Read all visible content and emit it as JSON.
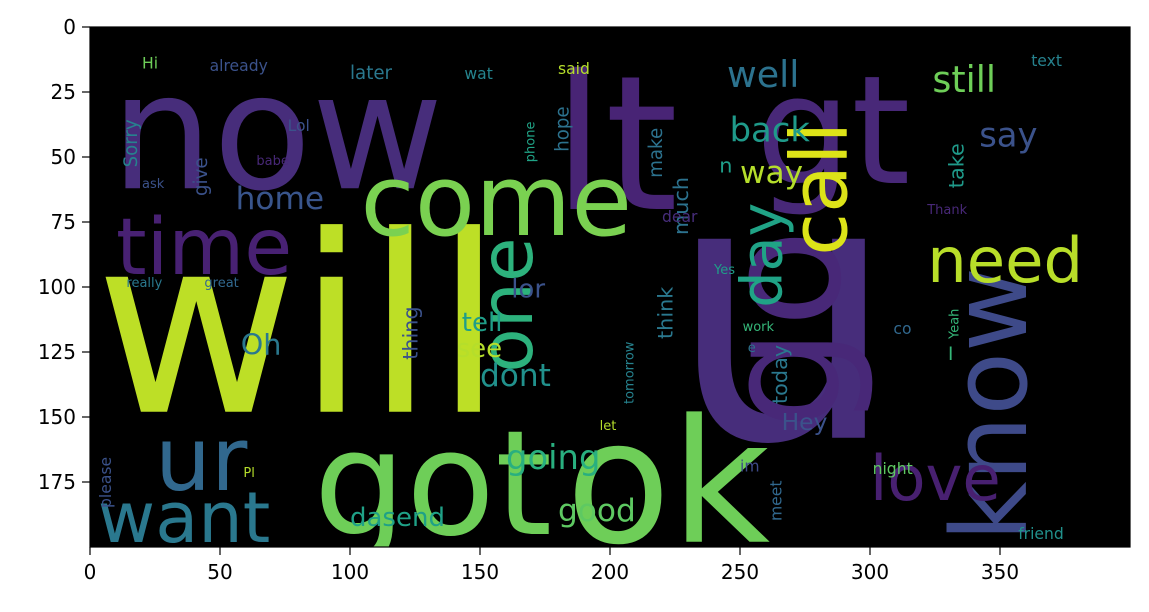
{
  "chart_data": {
    "type": "image",
    "xlim": [
      0,
      400
    ],
    "ylim": [
      200,
      0
    ],
    "x_ticks": [
      0,
      50,
      100,
      150,
      200,
      250,
      300,
      350
    ],
    "y_ticks": [
      0,
      25,
      50,
      75,
      100,
      125,
      150,
      175
    ],
    "background": "#000000",
    "palette": [
      "#440154",
      "#482878",
      "#3e4989",
      "#31688e",
      "#26828e",
      "#1f9e89",
      "#35b779",
      "#6ece58",
      "#b5de2b",
      "#fde725"
    ],
    "words": [
      {
        "text": "will",
        "x": 2,
        "y": 148,
        "size": 95,
        "color": "#bddf26"
      },
      {
        "text": "u",
        "x": 222,
        "y": 158,
        "size": 140,
        "color": "#472d7b"
      },
      {
        "text": "now",
        "x": 8,
        "y": 62,
        "size": 62,
        "color": "#472d7b"
      },
      {
        "text": "lt",
        "x": 178,
        "y": 70,
        "size": 72,
        "color": "#482475"
      },
      {
        "text": "gt",
        "x": 256,
        "y": 60,
        "size": 58,
        "color": "#482878"
      },
      {
        "text": "got",
        "x": 86,
        "y": 195,
        "size": 56,
        "color": "#6ece58"
      },
      {
        "text": "ok",
        "x": 183,
        "y": 198,
        "size": 66,
        "color": "#6ece58"
      },
      {
        "text": "come",
        "x": 104,
        "y": 80,
        "size": 38,
        "color": "#7ad151"
      },
      {
        "text": "go",
        "x": 288,
        "y": 155,
        "size": 62,
        "color": "#482878",
        "rotate": true
      },
      {
        "text": "know",
        "x": 360,
        "y": 198,
        "size": 40,
        "color": "#3e4a89",
        "rotate": true
      },
      {
        "text": "call",
        "x": 291,
        "y": 88,
        "size": 30,
        "color": "#dde318",
        "rotate": true
      },
      {
        "text": "time",
        "x": 10,
        "y": 95,
        "size": 30,
        "color": "#482173"
      },
      {
        "text": "ur",
        "x": 25,
        "y": 178,
        "size": 34,
        "color": "#31688e"
      },
      {
        "text": "want",
        "x": 3,
        "y": 198,
        "size": 27,
        "color": "#2a788e"
      },
      {
        "text": "one",
        "x": 170,
        "y": 133,
        "size": 28,
        "color": "#2db27d",
        "rotate": true
      },
      {
        "text": "need",
        "x": 322,
        "y": 98,
        "size": 24,
        "color": "#b8de29"
      },
      {
        "text": "love",
        "x": 300,
        "y": 182,
        "size": 24,
        "color": "#482071"
      },
      {
        "text": "day",
        "x": 266,
        "y": 108,
        "size": 22,
        "color": "#20a386",
        "rotate": true
      },
      {
        "text": "well",
        "x": 245,
        "y": 23,
        "size": 14,
        "color": "#2c728e"
      },
      {
        "text": "still",
        "x": 324,
        "y": 25,
        "size": 14,
        "color": "#6ece58"
      },
      {
        "text": "say",
        "x": 342,
        "y": 46,
        "size": 13,
        "color": "#3b528b"
      },
      {
        "text": "back",
        "x": 246,
        "y": 44,
        "size": 13,
        "color": "#1f9a8a"
      },
      {
        "text": "way",
        "x": 250,
        "y": 60,
        "size": 12,
        "color": "#b5de2b"
      },
      {
        "text": "home",
        "x": 56,
        "y": 70,
        "size": 12,
        "color": "#39558c"
      },
      {
        "text": "dont",
        "x": 150,
        "y": 138,
        "size": 12,
        "color": "#21918c"
      },
      {
        "text": "see",
        "x": 141,
        "y": 127,
        "size": 10,
        "color": "#b5de2b"
      },
      {
        "text": "lor",
        "x": 162,
        "y": 104,
        "size": 10,
        "color": "#3b528b"
      },
      {
        "text": "tell",
        "x": 143,
        "y": 117,
        "size": 10,
        "color": "#1f9e89"
      },
      {
        "text": "going",
        "x": 160,
        "y": 170,
        "size": 13,
        "color": "#29af7f"
      },
      {
        "text": "good",
        "x": 180,
        "y": 190,
        "size": 12,
        "color": "#5ec962"
      },
      {
        "text": "dasend",
        "x": 100,
        "y": 192,
        "size": 10,
        "color": "#1fa187"
      },
      {
        "text": "Oh",
        "x": 58,
        "y": 126,
        "size": 11,
        "color": "#2a788e"
      },
      {
        "text": "Hey",
        "x": 266,
        "y": 155,
        "size": 9,
        "color": "#3b528b"
      },
      {
        "text": "Sorry",
        "x": 18,
        "y": 54,
        "size": 7,
        "color": "#26828e",
        "rotate": true
      },
      {
        "text": "later",
        "x": 100,
        "y": 20,
        "size": 7,
        "color": "#2a788e"
      },
      {
        "text": "already",
        "x": 46,
        "y": 17,
        "size": 6,
        "color": "#3b528b"
      },
      {
        "text": "wat",
        "x": 144,
        "y": 20,
        "size": 6,
        "color": "#25848e"
      },
      {
        "text": "said",
        "x": 180,
        "y": 18,
        "size": 6,
        "color": "#b5de2b"
      },
      {
        "text": "Hi",
        "x": 20,
        "y": 16,
        "size": 6,
        "color": "#6ece58"
      },
      {
        "text": "text",
        "x": 362,
        "y": 15,
        "size": 6,
        "color": "#26828e"
      },
      {
        "text": "Lol",
        "x": 76,
        "y": 40,
        "size": 6,
        "color": "#3b528b"
      },
      {
        "text": "babe",
        "x": 64,
        "y": 53,
        "size": 5,
        "color": "#482878"
      },
      {
        "text": "give",
        "x": 45,
        "y": 65,
        "size": 7,
        "color": "#3b528b",
        "rotate": true
      },
      {
        "text": "hope",
        "x": 184,
        "y": 48,
        "size": 7,
        "color": "#2c728e",
        "rotate": true
      },
      {
        "text": "make",
        "x": 220,
        "y": 58,
        "size": 7,
        "color": "#2c728e",
        "rotate": true
      },
      {
        "text": "much",
        "x": 230,
        "y": 80,
        "size": 8,
        "color": "#2c728e",
        "rotate": true
      },
      {
        "text": "take",
        "x": 336,
        "y": 62,
        "size": 8,
        "color": "#1f9a8a",
        "rotate": true
      },
      {
        "text": "phone",
        "x": 171,
        "y": 52,
        "size": 5,
        "color": "#20a386",
        "rotate": true
      },
      {
        "text": "n",
        "x": 242,
        "y": 56,
        "size": 8,
        "color": "#1f9e89"
      },
      {
        "text": "ask",
        "x": 20,
        "y": 62,
        "size": 5,
        "color": "#3b528b"
      },
      {
        "text": "dear",
        "x": 220,
        "y": 75,
        "size": 6,
        "color": "#472d7b"
      },
      {
        "text": "Thank",
        "x": 322,
        "y": 72,
        "size": 5,
        "color": "#482878"
      },
      {
        "text": "thing",
        "x": 126,
        "y": 128,
        "size": 8,
        "color": "#3b528b",
        "rotate": true
      },
      {
        "text": "think",
        "x": 224,
        "y": 120,
        "size": 8,
        "color": "#2a788e",
        "rotate": true
      },
      {
        "text": "today",
        "x": 268,
        "y": 145,
        "size": 8,
        "color": "#2a788e",
        "rotate": true
      },
      {
        "text": "really",
        "x": 14,
        "y": 100,
        "size": 5,
        "color": "#2a788e"
      },
      {
        "text": "great",
        "x": 44,
        "y": 100,
        "size": 5,
        "color": "#31688e"
      },
      {
        "text": "Yes",
        "x": 240,
        "y": 95,
        "size": 5,
        "color": "#1f9e89"
      },
      {
        "text": "I",
        "x": 330,
        "y": 128,
        "size": 7,
        "color": "#35b779"
      },
      {
        "text": "Yeah",
        "x": 334,
        "y": 120,
        "size": 5,
        "color": "#35b779",
        "rotate": true
      },
      {
        "text": "work",
        "x": 251,
        "y": 117,
        "size": 5,
        "color": "#35b779"
      },
      {
        "text": "co",
        "x": 309,
        "y": 118,
        "size": 6,
        "color": "#31688e"
      },
      {
        "text": "e",
        "x": 253,
        "y": 125,
        "size": 5,
        "color": "#2c728e"
      },
      {
        "text": "tomorrow",
        "x": 209,
        "y": 145,
        "size": 5,
        "color": "#26828e",
        "rotate": true
      },
      {
        "text": "let",
        "x": 196,
        "y": 155,
        "size": 5,
        "color": "#b5de2b"
      },
      {
        "text": "please",
        "x": 8,
        "y": 185,
        "size": 6,
        "color": "#3b528b",
        "rotate": true
      },
      {
        "text": "Pl",
        "x": 59,
        "y": 173,
        "size": 5,
        "color": "#b5de2b"
      },
      {
        "text": "im",
        "x": 250,
        "y": 171,
        "size": 6,
        "color": "#3e4a89"
      },
      {
        "text": "meet",
        "x": 266,
        "y": 190,
        "size": 6,
        "color": "#31688e",
        "rotate": true
      },
      {
        "text": "night",
        "x": 301,
        "y": 172,
        "size": 6,
        "color": "#5ec962"
      },
      {
        "text": "friend",
        "x": 357,
        "y": 197,
        "size": 6,
        "color": "#21918c"
      }
    ]
  }
}
